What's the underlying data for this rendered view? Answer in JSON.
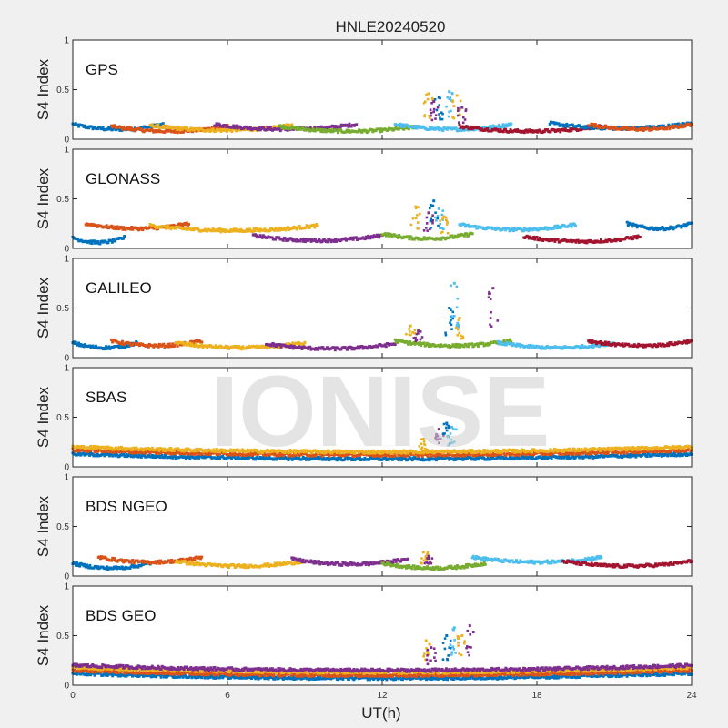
{
  "chart_data": {
    "type": "scatter",
    "title": "HNLE20240520",
    "xlabel": "UT(h)",
    "ylabel": "S4 Index",
    "xlim": [
      0,
      24
    ],
    "ylim": [
      0,
      1
    ],
    "xticks": [
      "0",
      "6",
      "12",
      "18",
      "24"
    ],
    "yticks": [
      "0",
      "0.5",
      "1"
    ],
    "grid": false,
    "watermark": "IONISE",
    "colors": [
      "#0072BD",
      "#D95319",
      "#EDB120",
      "#7E2F8E",
      "#77AC30",
      "#4DBEEE",
      "#A2142F"
    ],
    "panels": [
      {
        "name": "GPS",
        "baseline": 0.08,
        "arcs": [
          {
            "start": 0.0,
            "end": 3.5,
            "level": 0.1
          },
          {
            "start": 1.5,
            "end": 6.0,
            "level": 0.08
          },
          {
            "start": 3.0,
            "end": 8.5,
            "level": 0.09
          },
          {
            "start": 5.5,
            "end": 11.0,
            "level": 0.1
          },
          {
            "start": 8.0,
            "end": 13.5,
            "level": 0.08
          },
          {
            "start": 12.5,
            "end": 17.0,
            "level": 0.1
          },
          {
            "start": 15.0,
            "end": 20.5,
            "level": 0.08
          },
          {
            "start": 18.5,
            "end": 24.0,
            "level": 0.11
          },
          {
            "start": 20.0,
            "end": 24.0,
            "level": 0.1
          }
        ],
        "spikes": [
          {
            "t": 13.8,
            "s4": 0.46
          },
          {
            "t": 14.0,
            "s4": 0.38
          },
          {
            "t": 14.2,
            "s4": 0.42
          },
          {
            "t": 14.6,
            "s4": 0.48
          },
          {
            "t": 14.9,
            "s4": 0.44
          },
          {
            "t": 15.1,
            "s4": 0.32
          }
        ]
      },
      {
        "name": "GLONASS",
        "baseline": 0.06,
        "arcs": [
          {
            "start": 0.0,
            "end": 2.0,
            "level": 0.06
          },
          {
            "start": 0.5,
            "end": 4.5,
            "level": 0.2
          },
          {
            "start": 3.0,
            "end": 9.5,
            "level": 0.18
          },
          {
            "start": 7.0,
            "end": 12.0,
            "level": 0.08
          },
          {
            "start": 12.0,
            "end": 15.5,
            "level": 0.1
          },
          {
            "start": 15.0,
            "end": 19.5,
            "level": 0.19
          },
          {
            "start": 17.5,
            "end": 22.0,
            "level": 0.07
          },
          {
            "start": 21.5,
            "end": 24.0,
            "level": 0.2
          }
        ],
        "spikes": [
          {
            "t": 13.3,
            "s4": 0.42
          },
          {
            "t": 13.8,
            "s4": 0.36
          },
          {
            "t": 14.0,
            "s4": 0.48
          },
          {
            "t": 14.2,
            "s4": 0.4
          },
          {
            "t": 14.4,
            "s4": 0.32
          }
        ]
      },
      {
        "name": "GALILEO",
        "baseline": 0.07,
        "arcs": [
          {
            "start": 0.0,
            "end": 2.5,
            "level": 0.1
          },
          {
            "start": 1.5,
            "end": 5.0,
            "level": 0.12
          },
          {
            "start": 4.0,
            "end": 9.0,
            "level": 0.1
          },
          {
            "start": 7.5,
            "end": 12.5,
            "level": 0.09
          },
          {
            "start": 12.5,
            "end": 17.0,
            "level": 0.12
          },
          {
            "start": 16.5,
            "end": 21.0,
            "level": 0.1
          },
          {
            "start": 20.0,
            "end": 24.0,
            "level": 0.12
          }
        ],
        "spikes": [
          {
            "t": 13.1,
            "s4": 0.32
          },
          {
            "t": 13.4,
            "s4": 0.27
          },
          {
            "t": 14.6,
            "s4": 0.5
          },
          {
            "t": 14.8,
            "s4": 0.75
          },
          {
            "t": 15.0,
            "s4": 0.4
          },
          {
            "t": 16.3,
            "s4": 0.7
          }
        ]
      },
      {
        "name": "SBAS",
        "baseline": 0.11,
        "arcs": [
          {
            "start": 0.0,
            "end": 24.0,
            "level": 0.08
          },
          {
            "start": 0.0,
            "end": 24.0,
            "level": 0.12
          },
          {
            "start": 0.0,
            "end": 24.0,
            "level": 0.15
          }
        ],
        "spikes": [
          {
            "t": 13.6,
            "s4": 0.28
          },
          {
            "t": 14.2,
            "s4": 0.38
          },
          {
            "t": 14.5,
            "s4": 0.44
          },
          {
            "t": 14.7,
            "s4": 0.4
          }
        ]
      },
      {
        "name": "BDS NGEO",
        "baseline": 0.06,
        "arcs": [
          {
            "start": 0.0,
            "end": 3.0,
            "level": 0.08
          },
          {
            "start": 1.0,
            "end": 5.0,
            "level": 0.14
          },
          {
            "start": 4.0,
            "end": 9.0,
            "level": 0.1
          },
          {
            "start": 8.5,
            "end": 13.0,
            "level": 0.12
          },
          {
            "start": 12.0,
            "end": 16.0,
            "level": 0.08
          },
          {
            "start": 15.5,
            "end": 20.5,
            "level": 0.14
          },
          {
            "start": 19.0,
            "end": 24.0,
            "level": 0.1
          }
        ],
        "spikes": [
          {
            "t": 13.6,
            "s4": 0.24
          },
          {
            "t": 13.8,
            "s4": 0.2
          }
        ]
      },
      {
        "name": "BDS GEO",
        "baseline": 0.12,
        "arcs": [
          {
            "start": 0.0,
            "end": 24.0,
            "level": 0.07
          },
          {
            "start": 0.0,
            "end": 24.0,
            "level": 0.1
          },
          {
            "start": 0.0,
            "end": 24.0,
            "level": 0.13
          },
          {
            "start": 0.0,
            "end": 24.0,
            "level": 0.15
          }
        ],
        "spikes": [
          {
            "t": 13.7,
            "s4": 0.45
          },
          {
            "t": 13.9,
            "s4": 0.38
          },
          {
            "t": 14.5,
            "s4": 0.5
          },
          {
            "t": 14.8,
            "s4": 0.58
          },
          {
            "t": 15.1,
            "s4": 0.5
          },
          {
            "t": 15.4,
            "s4": 0.6
          }
        ]
      }
    ]
  }
}
